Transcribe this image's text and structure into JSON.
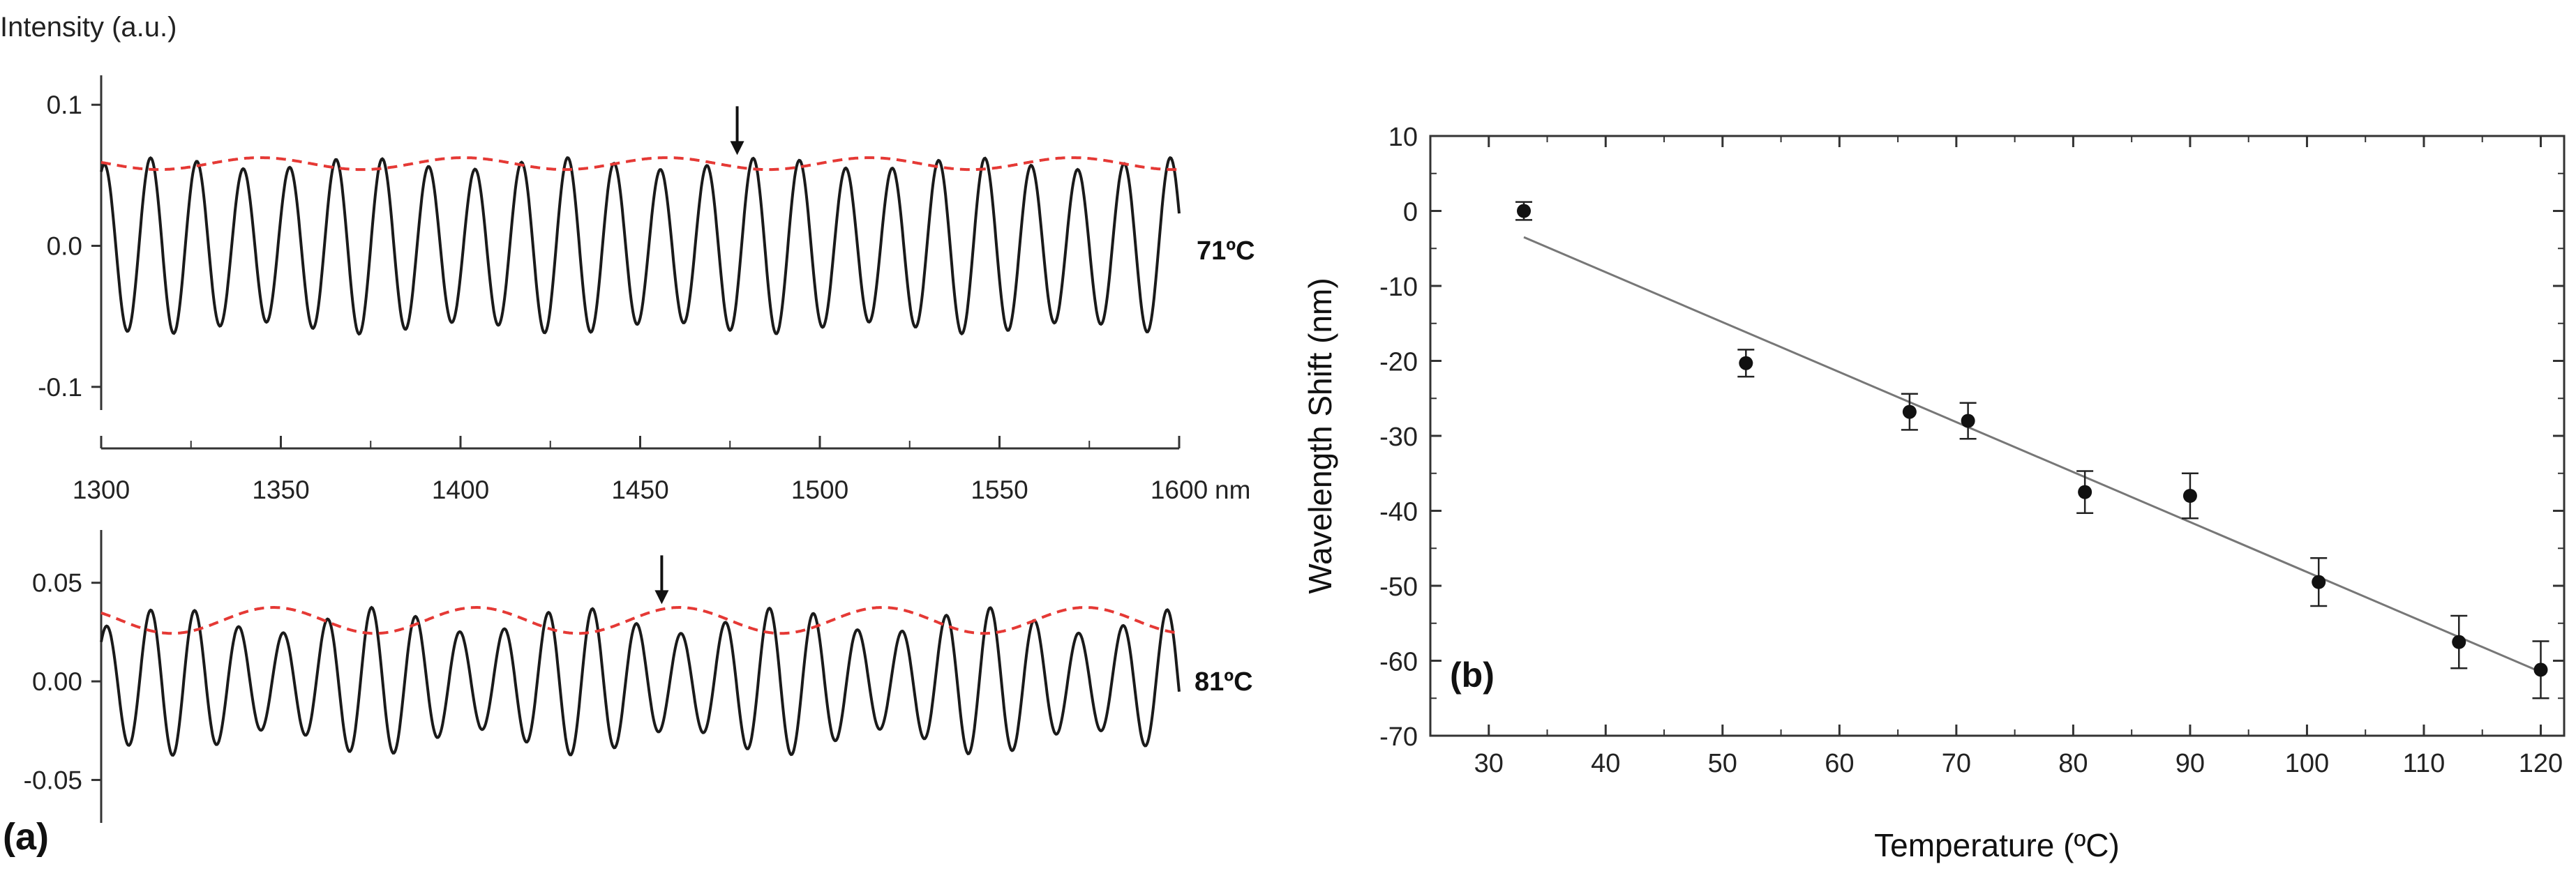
{
  "panel_a": {
    "label": "(a)",
    "y_title": "Intensity (a.u.)",
    "x_unit": "nm",
    "top": {
      "temperature_label": "71ºC"
    },
    "bottom": {
      "temperature_label": "81ºC"
    }
  },
  "panel_b": {
    "label": "(b)"
  },
  "chart_data": [
    {
      "type": "line",
      "title": "Intensity (a.u.)",
      "panel": "(a) top",
      "annotation": "71ºC",
      "xlabel": "nm",
      "xlim": [
        1300,
        1600
      ],
      "x_ticks": [
        1300,
        1350,
        1400,
        1450,
        1500,
        1550,
        1600
      ],
      "x_tick_labels": [
        "1300",
        "1350",
        "1400",
        "1450",
        "1500",
        "1550",
        "1600"
      ],
      "ylim": [
        -0.11,
        0.11
      ],
      "y_ticks": [
        -0.1,
        0.0,
        0.1
      ],
      "y_tick_labels": [
        "-0.1",
        "0.0",
        "0.1"
      ],
      "series": [
        {
          "name": "spectrum",
          "color": "#1a1a1a",
          "offset": 0.0,
          "amplitude": 0.0625,
          "fringe_period": 12.9,
          "fringe_phase": 1.0,
          "envelope_period": 56.5,
          "envelope_phase": 1.3,
          "envelope_depth": 0.3
        },
        {
          "name": "envelope",
          "color": "#e53935",
          "dashed": true,
          "upper_from": "spectrum"
        }
      ],
      "arrow_marker_nm": 1477
    },
    {
      "type": "line",
      "panel": "(a) bottom",
      "annotation": "81ºC",
      "xlim": [
        1300,
        1600
      ],
      "ylim": [
        -0.07,
        0.075
      ],
      "y_ticks": [
        -0.05,
        0.0,
        0.05
      ],
      "y_tick_labels": [
        "-0.05",
        "0.00",
        "0.05"
      ],
      "series": [
        {
          "name": "spectrum",
          "color": "#1a1a1a",
          "offset": 0.0,
          "amplitude": 0.0375,
          "fringe_period": 12.3,
          "fringe_phase": 1.2,
          "envelope_period": 56.5,
          "envelope_phase": 0.9,
          "envelope_depth": 0.78
        },
        {
          "name": "envelope",
          "color": "#e53935",
          "dashed": true,
          "upper_from": "spectrum"
        }
      ],
      "arrow_marker_nm": 1456
    },
    {
      "type": "scatter",
      "panel": "(b)",
      "xlabel": "Temperature (ºC)",
      "ylabel": "Wavelength Shift (nm)",
      "xlim": [
        25,
        122
      ],
      "ylim": [
        -70,
        10
      ],
      "x_ticks": [
        30,
        40,
        50,
        60,
        70,
        80,
        90,
        100,
        110,
        120
      ],
      "x_tick_labels": [
        "30",
        "40",
        "50",
        "60",
        "70",
        "80",
        "90",
        "100",
        "110",
        "120"
      ],
      "y_ticks": [
        10,
        0,
        -10,
        -20,
        -30,
        -40,
        -50,
        -60,
        -70
      ],
      "y_tick_labels": [
        "10",
        "0",
        "-10",
        "-20",
        "-30",
        "-40",
        "-50",
        "-60",
        "-70"
      ],
      "x": [
        33,
        52,
        66,
        71,
        81,
        90,
        101,
        113,
        120
      ],
      "y": [
        0,
        -20.3,
        -26.8,
        -28,
        -37.5,
        -38,
        -49.5,
        -57.5,
        -61.2
      ],
      "error": [
        1.2,
        1.8,
        2.4,
        2.4,
        2.8,
        3.0,
        3.2,
        3.5,
        3.8
      ],
      "fit": {
        "x": [
          33,
          120
        ],
        "y": [
          -3.5,
          -61.5
        ],
        "color": "#777777"
      }
    }
  ]
}
